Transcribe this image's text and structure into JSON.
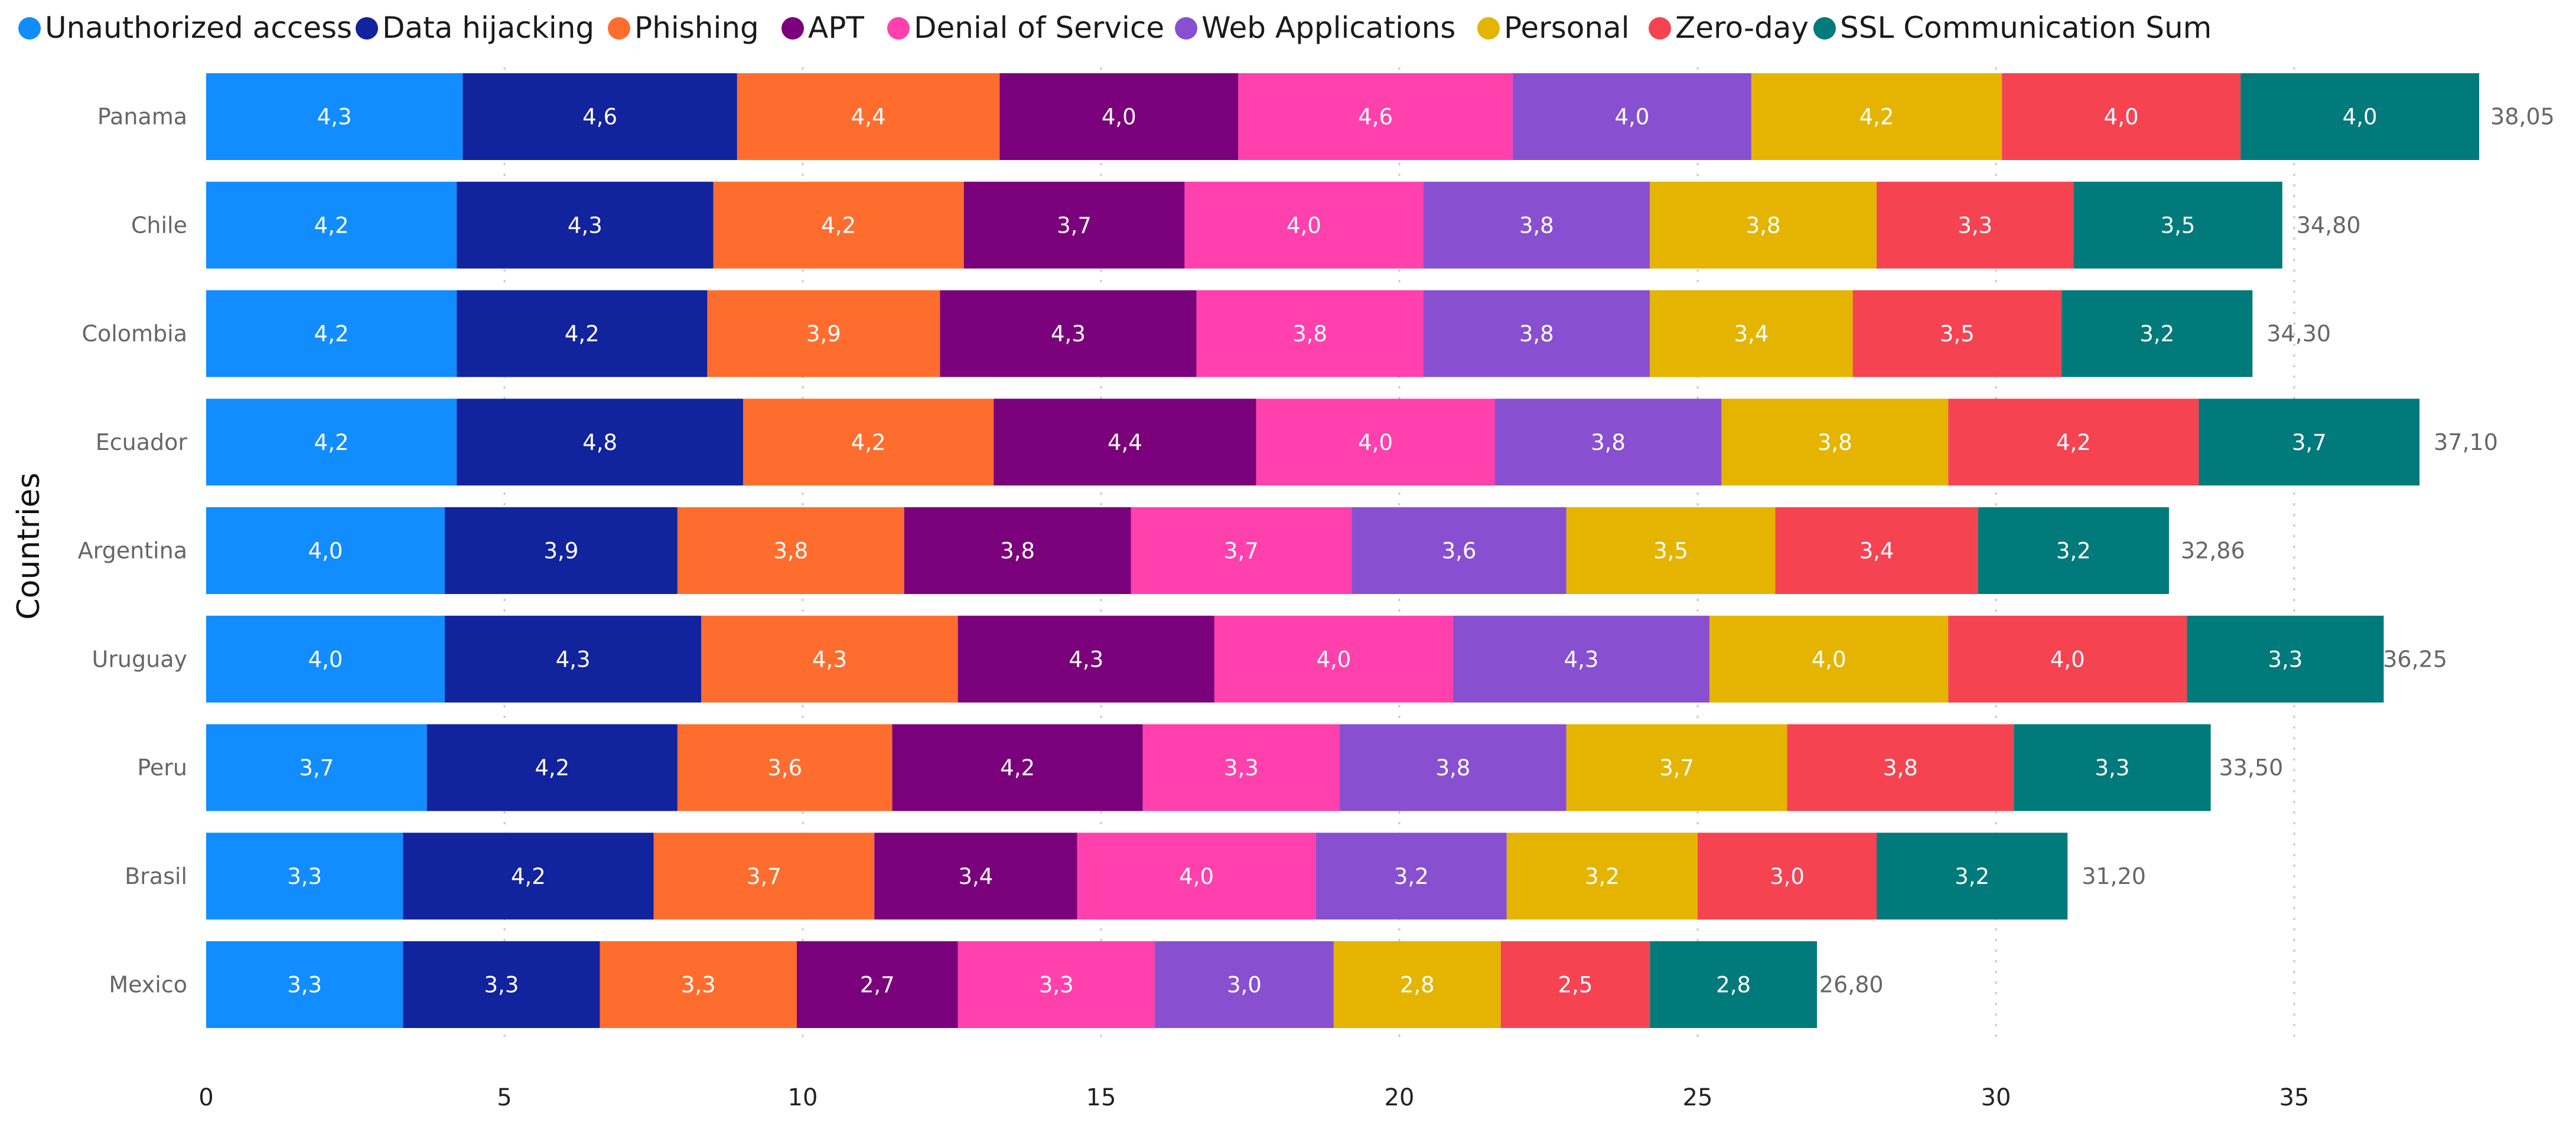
{
  "chart_data": {
    "type": "bar",
    "orientation": "horizontal",
    "stacked": true,
    "ylabel": "Countries",
    "xlim": [
      0,
      38.5
    ],
    "xticks": [
      0,
      5,
      10,
      15,
      20,
      25,
      30,
      35
    ],
    "grid": "vertical dotted",
    "legend_position": "top",
    "categories": [
      "Panama",
      "Chile",
      "Colombia",
      "Ecuador",
      "Argentina",
      "Uruguay",
      "Peru",
      "Brasil",
      "Mexico"
    ],
    "series": [
      {
        "name": "Unauthorized access",
        "color": "#118DFF",
        "values": [
          4.3,
          4.2,
          4.2,
          4.2,
          4.0,
          4.0,
          3.7,
          3.3,
          3.3
        ],
        "labels": [
          "4,3",
          "4,2",
          "4,2",
          "4,2",
          "4,0",
          "4,0",
          "3,7",
          "3,3",
          "3,3"
        ]
      },
      {
        "name": "Data hijacking",
        "color": "#12239E",
        "values": [
          4.6,
          4.3,
          4.2,
          4.8,
          3.9,
          4.3,
          4.2,
          4.2,
          3.3
        ],
        "labels": [
          "4,6",
          "4,3",
          "4,2",
          "4,8",
          "3,9",
          "4,3",
          "4,2",
          "4,2",
          "3,3"
        ]
      },
      {
        "name": "Phishing",
        "color": "#FF6D2E",
        "values": [
          4.4,
          4.2,
          3.9,
          4.2,
          3.8,
          4.3,
          3.6,
          3.7,
          3.3
        ],
        "labels": [
          "4,4",
          "4,2",
          "3,9",
          "4,2",
          "3,8",
          "4,3",
          "3,6",
          "3,7",
          "3,3"
        ]
      },
      {
        "name": "APT",
        "color": "#7B007B",
        "values": [
          4.0,
          3.7,
          4.3,
          4.4,
          3.8,
          4.3,
          4.2,
          3.4,
          2.7
        ],
        "labels": [
          "4,0",
          "3,7",
          "4,3",
          "4,4",
          "3,8",
          "4,3",
          "4,2",
          "3,4",
          "2,7"
        ]
      },
      {
        "name": "Denial of Service",
        "color": "#FF40AD",
        "values": [
          4.6,
          4.0,
          3.8,
          4.0,
          3.7,
          4.0,
          3.3,
          4.0,
          3.3
        ],
        "labels": [
          "4,6",
          "4,0",
          "3,8",
          "4,0",
          "3,7",
          "4,0",
          "3,3",
          "4,0",
          "3,3"
        ]
      },
      {
        "name": "Web Applications",
        "color": "#8850D0",
        "values": [
          4.0,
          3.8,
          3.8,
          3.8,
          3.6,
          4.3,
          3.8,
          3.2,
          3.0
        ],
        "labels": [
          "4,0",
          "3,8",
          "3,8",
          "3,8",
          "3,6",
          "4,3",
          "3,8",
          "3,2",
          "3,0"
        ]
      },
      {
        "name": "Personal",
        "color": "#E5B400",
        "values": [
          4.2,
          3.8,
          3.4,
          3.8,
          3.5,
          4.0,
          3.7,
          3.2,
          2.8
        ],
        "labels": [
          "4,2",
          "3,8",
          "3,4",
          "3,8",
          "3,5",
          "4,0",
          "3,7",
          "3,2",
          "2,8"
        ]
      },
      {
        "name": "Zero-day",
        "color": "#F64351",
        "values": [
          4.0,
          3.3,
          3.5,
          4.2,
          3.4,
          4.0,
          3.8,
          3.0,
          2.5
        ],
        "labels": [
          "4,0",
          "3,3",
          "3,5",
          "4,2",
          "3,4",
          "4,0",
          "3,8",
          "3,0",
          "2,5"
        ]
      },
      {
        "name": "SSL Communication Sum",
        "color": "#007A7A",
        "values": [
          4.0,
          3.5,
          3.2,
          3.7,
          3.2,
          3.3,
          3.3,
          3.2,
          2.8
        ],
        "labels": [
          "4,0",
          "3,5",
          "3,2",
          "3,7",
          "3,2",
          "3,3",
          "3,3",
          "3,2",
          "2,8"
        ]
      }
    ],
    "totals": [
      38.05,
      34.8,
      34.3,
      37.1,
      32.86,
      36.25,
      33.5,
      31.2,
      26.8
    ],
    "total_labels": [
      "38,05",
      "34,80",
      "34,30",
      "37,10",
      "32,86",
      "36,25",
      "33,50",
      "31,20",
      "26,80"
    ]
  }
}
